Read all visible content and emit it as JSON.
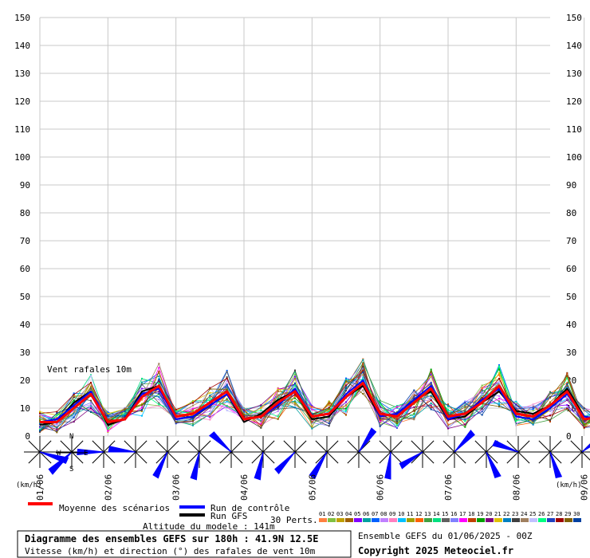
{
  "chart_data": {
    "type": "line",
    "title": "Diagramme des ensembles GEFS sur 180h : 41.9N 12.5E",
    "subtitle": "Vitesse (km/h) et direction (°) des rafales de vent 10m",
    "series_label": "Vent rafales 10m",
    "y_unit": "(km/h)",
    "ylim": [
      0,
      150
    ],
    "yticks": [
      0,
      10,
      20,
      30,
      40,
      50,
      60,
      70,
      80,
      90,
      100,
      110,
      120,
      130,
      140,
      150
    ],
    "xlim": [
      0,
      180
    ],
    "step_hours": 6,
    "date_labels": [
      "01/06",
      "02/06",
      "03/06",
      "04/06",
      "05/06",
      "06/06",
      "07/06",
      "08/06",
      "09/06"
    ],
    "grid": true,
    "mean": {
      "name": "Moyenne des scénarios",
      "color": "#ff0000",
      "values": [
        5,
        5,
        10,
        15,
        5,
        6,
        14,
        18,
        7,
        8,
        12,
        16,
        6,
        7,
        12,
        16,
        7,
        8,
        14,
        19,
        8,
        7,
        12,
        17,
        7,
        8,
        12,
        18,
        8,
        7,
        11,
        16,
        6,
        7,
        11,
        16,
        9,
        8
      ]
    },
    "control": {
      "name": "Run de contrôle",
      "color": "#0000ff",
      "values": [
        5,
        6,
        11,
        16,
        5,
        6,
        15,
        17,
        6,
        7,
        11,
        15,
        6,
        7,
        11,
        17,
        7,
        8,
        15,
        20,
        7,
        8,
        13,
        18,
        6,
        8,
        13,
        17,
        7,
        6,
        10,
        15,
        7,
        6,
        10,
        15,
        8,
        7
      ]
    },
    "gfs": {
      "name": "Run GFS",
      "color": "#000000",
      "values": [
        4,
        5,
        12,
        16,
        4,
        6,
        16,
        18,
        6,
        7,
        11,
        15,
        5,
        8,
        13,
        16,
        6,
        7,
        14,
        18,
        7,
        8,
        13,
        16,
        6,
        7,
        12,
        16,
        9,
        8,
        11,
        17,
        7,
        6,
        11,
        14,
        7,
        6
      ]
    },
    "perturbations": {
      "label": "30 Perts.",
      "names": [
        "01",
        "02",
        "03",
        "04",
        "05",
        "06",
        "07",
        "08",
        "09",
        "10",
        "11",
        "12",
        "13",
        "14",
        "15",
        "16",
        "17",
        "18",
        "19",
        "20",
        "21",
        "22",
        "23",
        "24",
        "25",
        "26",
        "27",
        "28",
        "29",
        "30"
      ],
      "colors": [
        "#ff8040",
        "#80c040",
        "#c0a000",
        "#a06000",
        "#8000ff",
        "#00a0a0",
        "#0060ff",
        "#c080ff",
        "#ff80c0",
        "#00c0ff",
        "#a0a000",
        "#ff6000",
        "#40a040",
        "#00e080",
        "#606060",
        "#8080ff",
        "#ff00ff",
        "#c04000",
        "#00a000",
        "#800080",
        "#e0c000",
        "#0080c0",
        "#404040",
        "#a08060",
        "#c0c0ff",
        "#00ff80",
        "#2040c0",
        "#a00000",
        "#806000",
        "#0040a0"
      ]
    },
    "wind_dirs": [
      {
        "u": 0.9,
        "v": -0.4
      },
      {
        "u": -0.8,
        "v": -0.6
      },
      {
        "u": -0.9,
        "v": 0.1
      },
      {
        "u": -0.9,
        "v": 0.2
      },
      {
        "u": -0.5,
        "v": -0.8
      },
      {
        "u": -0.3,
        "v": -0.9
      },
      {
        "u": -0.6,
        "v": 0.7
      },
      {
        "u": -0.3,
        "v": -0.9
      },
      {
        "u": -0.7,
        "v": -0.6
      },
      {
        "u": -0.6,
        "v": -0.8
      },
      {
        "u": 0.6,
        "v": 0.7
      },
      {
        "u": -0.2,
        "v": -0.9
      },
      {
        "u": -0.8,
        "v": -0.4
      },
      {
        "u": 0.7,
        "v": 0.6
      },
      {
        "u": 0.3,
        "v": -0.9
      },
      {
        "u": -0.8,
        "v": 0.4
      },
      {
        "u": 0.2,
        "v": -0.9
      },
      {
        "u": 0.8,
        "v": 0.5
      }
    ]
  },
  "legend": {
    "mean_label": "Moyenne des scénarios",
    "control_label": "Run de contrôle",
    "gfs_label": "Run GFS",
    "altitude": "Altitude du modele : 141m",
    "perts_label": "30 Perts."
  },
  "compass": {
    "n": "N",
    "s": "S",
    "e": "E",
    "w": "W"
  },
  "footer": {
    "title": "Diagramme des ensembles GEFS sur 180h : 41.9N 12.5E",
    "subtitle": "Vitesse (km/h) et direction (°) des rafales de vent 10m",
    "ensemble": "Ensemble GEFS du 01/06/2025 - 00Z",
    "copyright": "Copyright 2025 Meteociel.fr"
  }
}
